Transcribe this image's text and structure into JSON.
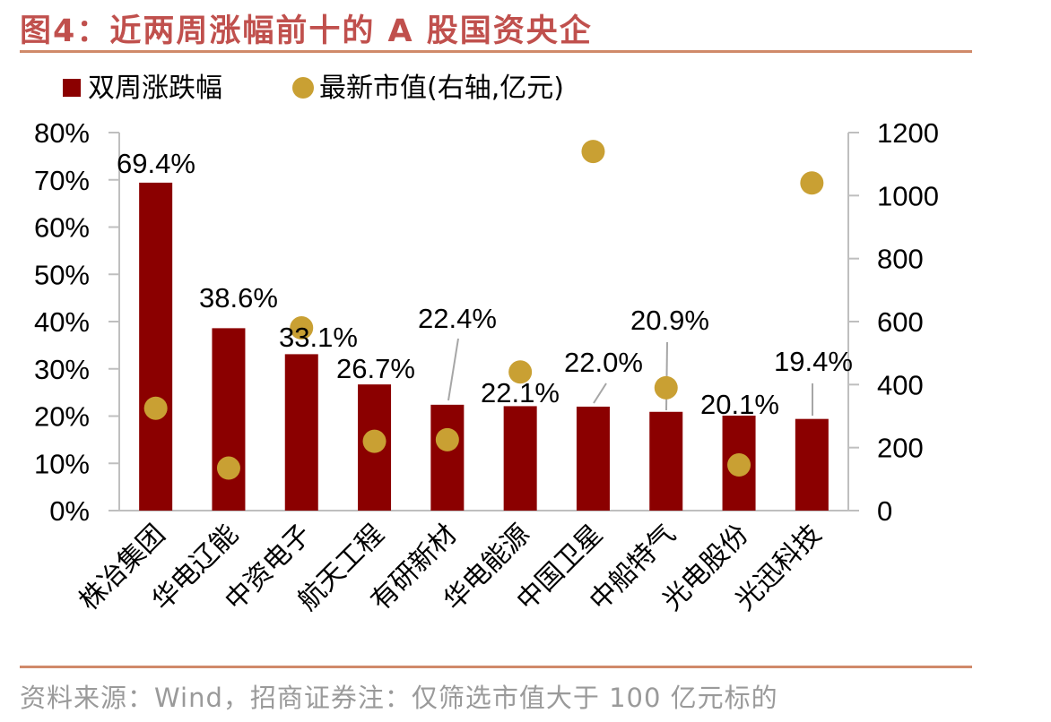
{
  "header": {
    "title": "图4：近两周涨幅前十的 A 股国资央企"
  },
  "footer": {
    "source": "资料来源：Wind，招商证券注：仅筛选市值大于 100 亿元标的"
  },
  "colors": {
    "bar": "#8B0000",
    "dot": "#C9A033",
    "title": "#C0504D",
    "rule": "#D08A6A",
    "axis": "#BFBFBF"
  },
  "chart_data": {
    "type": "bar",
    "categories": [
      "株冶集团",
      "华电辽能",
      "中资电子",
      "航天工程",
      "有研新材",
      "华电能源",
      "中国卫星",
      "中船特气",
      "光电股份",
      "光迅科技"
    ],
    "series": [
      {
        "name": "双周涨跌幅",
        "type": "bar",
        "axis": "left",
        "values": [
          69.4,
          38.6,
          33.1,
          26.7,
          22.4,
          22.1,
          22.0,
          20.9,
          20.1,
          19.4
        ],
        "labels": [
          "69.4%",
          "38.6%",
          "33.1%",
          "26.7%",
          "22.4%",
          "22.1%",
          "22.0%",
          "20.9%",
          "20.1%",
          "19.4%"
        ]
      },
      {
        "name": "最新市值(右轴,亿元)",
        "type": "scatter",
        "axis": "right",
        "values": [
          325,
          135,
          580,
          220,
          225,
          440,
          1140,
          390,
          145,
          1040
        ]
      }
    ],
    "y_left": {
      "lim": [
        0,
        80
      ],
      "ticks": [
        "0%",
        "10%",
        "20%",
        "30%",
        "40%",
        "50%",
        "60%",
        "70%",
        "80%"
      ]
    },
    "y_right": {
      "lim": [
        0,
        1200
      ],
      "ticks": [
        "0",
        "200",
        "400",
        "600",
        "800",
        "1000",
        "1200"
      ]
    },
    "legend_position": "top-left",
    "grid": false
  }
}
